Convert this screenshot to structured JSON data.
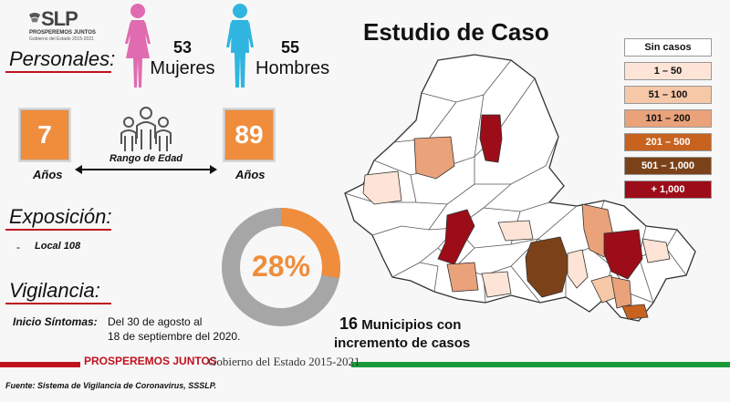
{
  "logo": {
    "brand": "SLP",
    "line1": "PROSPEREMOS JUNTOS",
    "line2": "Gobierno del Estado 2015-2021"
  },
  "personales": {
    "title": "Personales:",
    "mujeres_count": "53",
    "mujeres_label": "Mujeres",
    "hombres_count": "55",
    "hombres_label": "Hombres"
  },
  "edad": {
    "min_value": "7",
    "min_unit": "Años",
    "max_value": "89",
    "max_unit": "Años",
    "range_label": "Rango de Edad"
  },
  "exposicion": {
    "title": "Exposición:",
    "bullet": "-",
    "item": "Local 108"
  },
  "donut": {
    "percent_label": "28%",
    "fraction": 0.28,
    "fill_color": "#ef8d3c",
    "track_color": "#a6a6a6"
  },
  "vigilancia": {
    "title": "Vigilancia:",
    "inicio_label": "Inicio Síntomas:",
    "inicio_line1": "Del 30 de agosto al",
    "inicio_line2": "18 de septiembre del 2020."
  },
  "map": {
    "title": "Estudio de Caso",
    "summary_number": "16",
    "summary_line1": "Municipios con",
    "summary_line2": "incremento de casos"
  },
  "legend": [
    {
      "label": "Sin casos",
      "bg": "#ffffff",
      "fg": "#111111"
    },
    {
      "label": "1 – 50",
      "bg": "#fde4d6",
      "fg": "#111111"
    },
    {
      "label": "51 – 100",
      "bg": "#f7c8a8",
      "fg": "#111111"
    },
    {
      "label": "101 – 200",
      "bg": "#e9a27a",
      "fg": "#111111"
    },
    {
      "label": "201 – 500",
      "bg": "#c8621f",
      "fg": "#ffffff"
    },
    {
      "label": "501 – 1,000",
      "bg": "#7b4219",
      "fg": "#ffffff"
    },
    {
      "label": "+ 1,000",
      "bg": "#9c0d19",
      "fg": "#ffffff"
    }
  ],
  "footer": {
    "brand": "PROSPEREMOS JUNTOS",
    "gov": "Gobierno del Estado 2015-2021",
    "source": "Fuente: Sistema de Vigilancia de Coronavirus, SSSLP.",
    "bar_colors": [
      "#c0121e",
      "#1a9a3a"
    ]
  }
}
